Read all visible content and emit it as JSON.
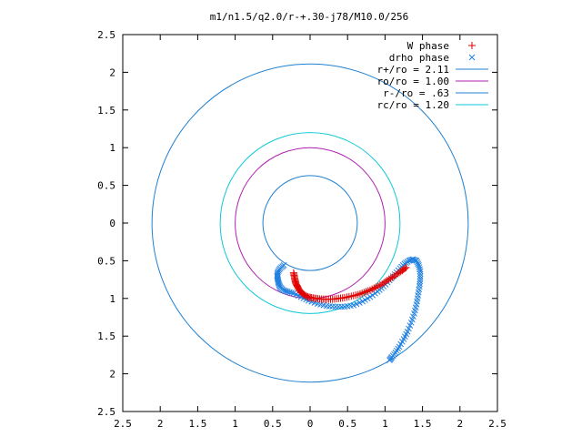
{
  "chart_data": {
    "type": "scatter",
    "title": "m1/n1.5/q2.0/r-+.30-j78/M10.0/256",
    "xlabel": "",
    "ylabel": "",
    "xlim": [
      -2.5,
      2.5
    ],
    "ylim": [
      -2.5,
      2.5
    ],
    "axis_tick_values": [
      -2.5,
      -2,
      -1.5,
      -1,
      -0.5,
      0,
      0.5,
      1,
      1.5,
      2,
      2.5
    ],
    "x_tick_labels": [
      "2.5",
      "2",
      "1.5",
      "1",
      "0.5",
      "0",
      "0.5",
      "1",
      "1.5",
      "2",
      "2.5"
    ],
    "y_tick_labels": [
      "2.5",
      "2",
      "1.5",
      "1",
      "0.5",
      "0",
      "0.5",
      "1",
      "1.5",
      "2",
      "2.5"
    ],
    "grid": false,
    "legend_position": "top-right",
    "circles": [
      {
        "name": "r+/ro = 2.11",
        "radius": 2.11,
        "color": "#2080d0"
      },
      {
        "name": "ro/ro = 1.00",
        "radius": 1.0,
        "color": "#b020b0"
      },
      {
        "name": "r-/ro = .63",
        "radius": 0.63,
        "color": "#2080d0"
      },
      {
        "name": "rc/ro = 1.20",
        "radius": 1.2,
        "color": "#10c8d8"
      }
    ],
    "series": [
      {
        "name": "W phase",
        "marker": "plus",
        "color": "#e00000",
        "points": [
          [
            -0.22,
            -0.66
          ],
          [
            -0.21,
            -0.71
          ],
          [
            -0.2,
            -0.76
          ],
          [
            -0.19,
            -0.8
          ],
          [
            -0.17,
            -0.84
          ],
          [
            -0.15,
            -0.88
          ],
          [
            -0.12,
            -0.92
          ],
          [
            -0.08,
            -0.95
          ],
          [
            -0.03,
            -0.98
          ],
          [
            0.02,
            -0.99
          ],
          [
            0.08,
            -1.0
          ],
          [
            0.15,
            -1.01
          ],
          [
            0.22,
            -1.01
          ],
          [
            0.3,
            -1.01
          ],
          [
            0.38,
            -1.0
          ],
          [
            0.46,
            -0.99
          ],
          [
            0.55,
            -0.97
          ],
          [
            0.64,
            -0.95
          ],
          [
            0.72,
            -0.92
          ],
          [
            0.8,
            -0.89
          ],
          [
            0.88,
            -0.85
          ],
          [
            0.96,
            -0.81
          ],
          [
            1.03,
            -0.76
          ],
          [
            1.1,
            -0.72
          ],
          [
            1.17,
            -0.67
          ],
          [
            1.23,
            -0.63
          ],
          [
            1.28,
            -0.59
          ]
        ]
      },
      {
        "name": "drho phase",
        "marker": "cross",
        "color": "#2080e0",
        "points": [
          [
            -0.35,
            -0.56
          ],
          [
            -0.4,
            -0.6
          ],
          [
            -0.43,
            -0.65
          ],
          [
            -0.44,
            -0.7
          ],
          [
            -0.43,
            -0.75
          ],
          [
            -0.42,
            -0.8
          ],
          [
            -0.4,
            -0.85
          ],
          [
            -0.36,
            -0.89
          ],
          [
            -0.3,
            -0.91
          ],
          [
            -0.22,
            -0.93
          ],
          [
            -0.12,
            -0.98
          ],
          [
            -0.02,
            -1.03
          ],
          [
            0.1,
            -1.07
          ],
          [
            0.22,
            -1.1
          ],
          [
            0.34,
            -1.11
          ],
          [
            0.46,
            -1.11
          ],
          [
            0.58,
            -1.09
          ],
          [
            0.7,
            -1.04
          ],
          [
            0.8,
            -0.98
          ],
          [
            0.9,
            -0.91
          ],
          [
            0.98,
            -0.84
          ],
          [
            1.06,
            -0.76
          ],
          [
            1.13,
            -0.68
          ],
          [
            1.2,
            -0.6
          ],
          [
            1.26,
            -0.54
          ],
          [
            1.32,
            -0.5
          ],
          [
            1.37,
            -0.48
          ],
          [
            1.42,
            -0.5
          ],
          [
            1.45,
            -0.56
          ],
          [
            1.47,
            -0.64
          ],
          [
            1.47,
            -0.74
          ],
          [
            1.46,
            -0.84
          ],
          [
            1.44,
            -0.96
          ],
          [
            1.42,
            -1.08
          ],
          [
            1.39,
            -1.2
          ],
          [
            1.35,
            -1.32
          ],
          [
            1.3,
            -1.44
          ],
          [
            1.25,
            -1.54
          ],
          [
            1.19,
            -1.64
          ],
          [
            1.14,
            -1.72
          ],
          [
            1.09,
            -1.78
          ],
          [
            1.06,
            -1.82
          ]
        ]
      }
    ]
  }
}
